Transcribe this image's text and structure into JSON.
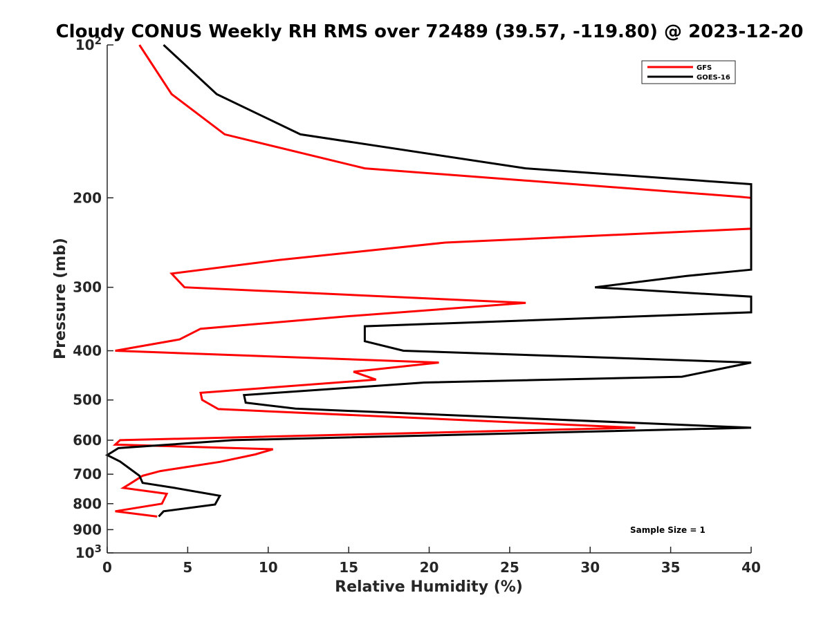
{
  "chart_data": {
    "type": "line",
    "title": "Cloudy CONUS Weekly RH RMS over 72489 (39.57, -119.80) @ 2023-12-20",
    "xlabel": "Relative Humidity (%)",
    "ylabel": "Pressure (mb)",
    "xlim": [
      0,
      40
    ],
    "ylim": [
      100,
      1000
    ],
    "y_scale": "log",
    "y_reversed": true,
    "x_ticks": [
      "0",
      "5",
      "10",
      "15",
      "20",
      "25",
      "30",
      "35",
      "40"
    ],
    "y_ticks": [
      {
        "value": 100,
        "base": "10",
        "exp": "2"
      },
      {
        "value": 200,
        "label": "200"
      },
      {
        "value": 300,
        "label": "300"
      },
      {
        "value": 400,
        "label": "400"
      },
      {
        "value": 500,
        "label": "500"
      },
      {
        "value": 600,
        "label": "600"
      },
      {
        "value": 700,
        "label": "700"
      },
      {
        "value": 800,
        "label": "800"
      },
      {
        "value": 900,
        "label": "900"
      },
      {
        "value": 1000,
        "base": "10",
        "exp": "3"
      }
    ],
    "grid": false,
    "legend_position": "top-right",
    "annotation": "Sample Size = 1",
    "series": [
      {
        "name": "GFS",
        "color": "#ff0000",
        "points": [
          [
            2.0,
            100
          ],
          [
            4.0,
            125
          ],
          [
            7.3,
            150
          ],
          [
            16.0,
            175
          ],
          [
            39.3,
            199
          ],
          [
            40.0,
            200
          ],
          [
            40.0,
            230
          ],
          [
            21.0,
            245
          ],
          [
            10.7,
            265
          ],
          [
            4.0,
            282
          ],
          [
            4.8,
            300
          ],
          [
            26.0,
            322
          ],
          [
            15.0,
            342
          ],
          [
            5.8,
            362
          ],
          [
            4.5,
            380
          ],
          [
            0.5,
            400
          ],
          [
            20.6,
            422
          ],
          [
            15.3,
            440
          ],
          [
            16.7,
            456
          ],
          [
            5.8,
            484
          ],
          [
            5.9,
            500
          ],
          [
            6.9,
            521
          ],
          [
            32.8,
            567
          ],
          [
            0.8,
            600
          ],
          [
            0.5,
            612
          ],
          [
            10.3,
            625
          ],
          [
            9.2,
            640
          ],
          [
            7.0,
            662
          ],
          [
            3.3,
            690
          ],
          [
            2.2,
            705
          ],
          [
            1.6,
            725
          ],
          [
            1.0,
            745
          ],
          [
            3.7,
            765
          ],
          [
            3.4,
            800
          ],
          [
            0.5,
            828
          ],
          [
            3.1,
            848
          ]
        ]
      },
      {
        "name": "GOES-16",
        "color": "#000000",
        "points": [
          [
            3.5,
            100
          ],
          [
            6.8,
            125
          ],
          [
            12.0,
            150
          ],
          [
            26.0,
            175
          ],
          [
            40.0,
            188
          ],
          [
            40.0,
            277
          ],
          [
            36.0,
            285
          ],
          [
            30.3,
            300
          ],
          [
            40.0,
            313
          ],
          [
            40.0,
            336
          ],
          [
            16.0,
            358
          ],
          [
            16.0,
            383
          ],
          [
            18.4,
            400
          ],
          [
            40.0,
            422
          ],
          [
            35.7,
            450
          ],
          [
            19.7,
            462
          ],
          [
            8.5,
            489
          ],
          [
            8.6,
            506
          ],
          [
            11.7,
            520
          ],
          [
            40.0,
            567
          ],
          [
            7.8,
            600
          ],
          [
            0.7,
            622
          ],
          [
            0.0,
            642
          ],
          [
            0.8,
            661
          ],
          [
            2.0,
            705
          ],
          [
            2.2,
            728
          ],
          [
            4.2,
            745
          ],
          [
            7.0,
            772
          ],
          [
            6.7,
            803
          ],
          [
            3.5,
            828
          ],
          [
            3.2,
            848
          ]
        ]
      }
    ]
  }
}
